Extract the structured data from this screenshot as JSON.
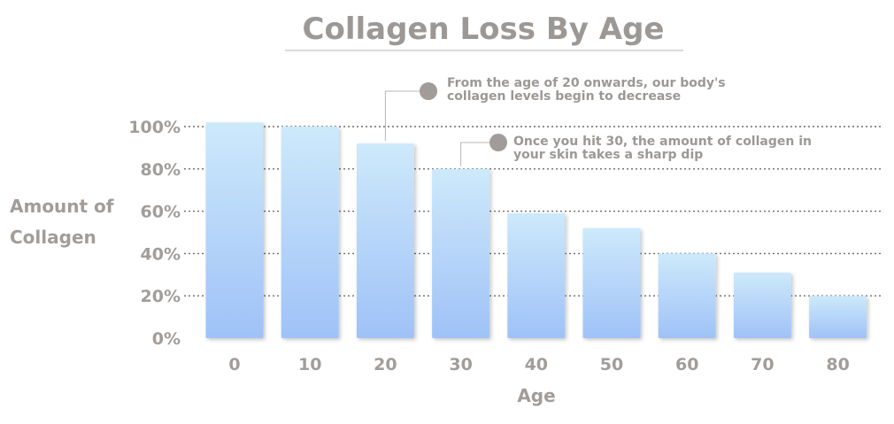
{
  "chart_data": {
    "type": "bar",
    "title": "Collagen Loss By Age",
    "xlabel": "Age",
    "ylabel_lines": [
      "Amount of",
      "Collagen"
    ],
    "categories": [
      "0",
      "10",
      "20",
      "30",
      "40",
      "50",
      "60",
      "70",
      "80"
    ],
    "values": [
      102,
      100,
      92,
      80,
      59,
      52,
      40,
      31,
      20
    ],
    "ylim": [
      0,
      100
    ],
    "yticks": [
      "0%",
      "20%",
      "40%",
      "60%",
      "80%",
      "100%"
    ],
    "grid": true,
    "bar_color_top": "#cde9fb",
    "bar_color_bottom": "#9fc2f7",
    "annotations": [
      {
        "lines": [
          "From the age of 20 onwards, our body's",
          "collagen levels begin to decrease"
        ],
        "category": "20"
      },
      {
        "lines": [
          "Once you hit 30, the amount of collagen in",
          "your skin takes a sharp dip"
        ],
        "category": "30"
      }
    ]
  },
  "colors": {
    "text": "#a19d9a",
    "title": "#9b9895",
    "marker": "#a29c99",
    "grid": "#6d6a67"
  }
}
